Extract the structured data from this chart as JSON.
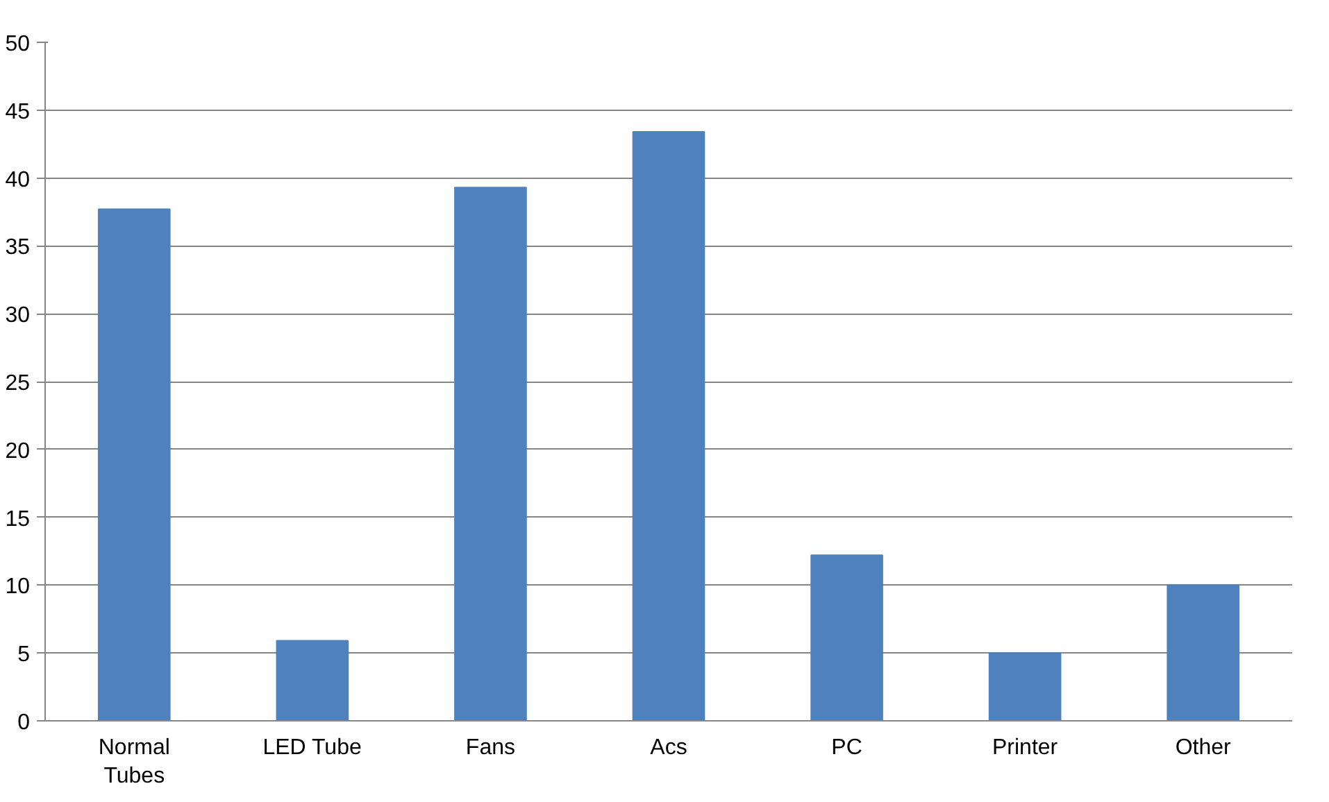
{
  "chart_data": {
    "type": "bar",
    "categories": [
      "Normal Tubes",
      "LED Tube",
      "Fans",
      "Acs",
      "PC",
      "Printer",
      "Other"
    ],
    "values": [
      37.7,
      5.9,
      39.3,
      43.4,
      12.2,
      5,
      10
    ],
    "color": "#4f81bd",
    "ylim": [
      0,
      50
    ],
    "yticks": [
      0,
      5,
      10,
      15,
      20,
      25,
      30,
      35,
      40,
      45,
      50
    ],
    "grid": "y"
  }
}
